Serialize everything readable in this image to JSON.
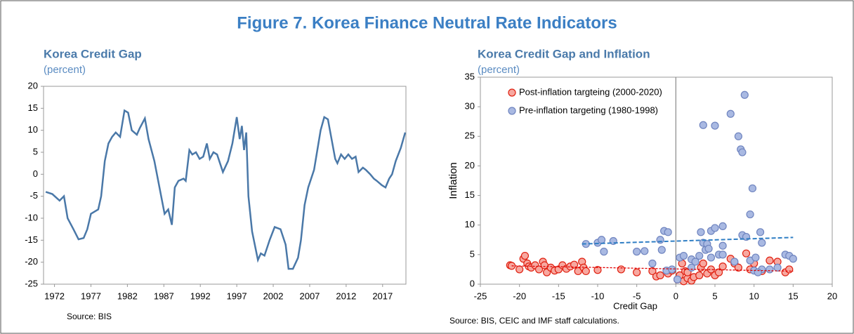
{
  "figure_title": "Figure 7. Korea Finance Neutral Rate Indicators",
  "chart_data": [
    {
      "type": "line",
      "title": "Korea Credit Gap",
      "subtitle": "(percent)",
      "source": "Source: BIS",
      "color": "#4a78a8",
      "x": [
        1970.8,
        1971.7,
        1972.7,
        1973.3,
        1973.8,
        1974.6,
        1975.3,
        1976.0,
        1976.5,
        1977.0,
        1978.0,
        1978.4,
        1978.9,
        1979.4,
        1979.9,
        1980.4,
        1981.0,
        1981.6,
        1982.1,
        1982.6,
        1983.3,
        1983.7,
        1984.4,
        1984.9,
        1985.7,
        1986.4,
        1987.1,
        1987.6,
        1988.1,
        1988.5,
        1989.0,
        1989.7,
        1990.0,
        1990.5,
        1990.9,
        1991.4,
        1991.9,
        1992.4,
        1992.9,
        1993.3,
        1993.8,
        1994.3,
        1995.1,
        1995.8,
        1996.4,
        1997.0,
        1997.4,
        1997.7,
        1998.0,
        1998.3,
        1998.6,
        1999.1,
        1999.9,
        2000.3,
        2000.8,
        2001.5,
        2002.2,
        2003.0,
        2003.7,
        2004.1,
        2004.7,
        2005.4,
        2005.8,
        2006.3,
        2006.8,
        2007.6,
        2008.0,
        2008.5,
        2009.0,
        2009.5,
        2010.0,
        2010.5,
        2010.8,
        2011.3,
        2011.8,
        2012.3,
        2012.8,
        2013.3,
        2013.7,
        2014.3,
        2014.7,
        2015.3,
        2015.8,
        2016.2,
        2016.9,
        2017.4,
        2017.9,
        2018.3,
        2018.8,
        2019.5,
        2020.1
      ],
      "values": [
        -4,
        -4.5,
        -6,
        -5,
        -10,
        -12.5,
        -14.8,
        -14.5,
        -12.5,
        -9,
        -8,
        -5,
        3,
        7,
        8.5,
        9.5,
        8.5,
        14.5,
        14,
        10,
        9,
        10.5,
        12.7,
        8,
        3,
        -3,
        -9,
        -8,
        -11.5,
        -3,
        -1.5,
        -1,
        -1.5,
        5.5,
        4.5,
        5,
        3.5,
        4,
        7,
        3.5,
        5,
        4.5,
        0.5,
        3,
        7,
        13,
        8,
        11,
        5.5,
        9.5,
        -5,
        -13,
        -19.5,
        -18,
        -18.5,
        -15,
        -12,
        -12.5,
        -16,
        -21.5,
        -21.5,
        -19,
        -15,
        -7,
        -3,
        1,
        5,
        10,
        13,
        12.5,
        8,
        3.5,
        2.5,
        4.5,
        3.5,
        4.5,
        3.5,
        4,
        0.5,
        1.5,
        1,
        0,
        -1,
        -1.5,
        -2.5,
        -3,
        -1,
        0,
        3,
        6,
        9.5
      ],
      "xlim": [
        1970.5,
        2020.2
      ],
      "xticks": [
        1972,
        1977,
        1982,
        1987,
        1992,
        1997,
        2002,
        2007,
        2012,
        2017
      ],
      "ylim": [
        -25,
        20
      ],
      "yticks": [
        -25,
        -20,
        -15,
        -10,
        -5,
        0,
        5,
        10,
        15,
        20
      ]
    },
    {
      "type": "scatter",
      "title": "Korea Credit Gap and Inflation",
      "subtitle": "(percent)",
      "source": "Source: BIS, CEIC and IMF staff calculations.",
      "xlabel": "Credit Gap",
      "ylabel": "Inflation",
      "legend": "upper left",
      "reference_x": 0,
      "xlim": [
        -25,
        20
      ],
      "xticks": [
        -25,
        -20,
        -15,
        -10,
        -5,
        0,
        5,
        10,
        15,
        20
      ],
      "ylim": [
        0,
        35
      ],
      "yticks": [
        0,
        5,
        10,
        15,
        20,
        25,
        30,
        35
      ],
      "series": [
        {
          "name": "Post-inflation targteing (2000-2020)",
          "color": "#f7a8a0",
          "edge": "#e02010",
          "x": [
            -21.2,
            -21,
            -20,
            -19.5,
            -19.3,
            -19,
            -18.8,
            -18.5,
            -18,
            -17.5,
            -17,
            -16.8,
            -16.5,
            -16,
            -15.5,
            -15,
            -14.5,
            -14,
            -13.5,
            -13,
            -12.5,
            -12,
            -11.8,
            -11.5,
            -10,
            -7,
            -5,
            -3,
            -2.5,
            -2,
            -1,
            -0.5,
            0.2,
            0.5,
            1,
            1.2,
            1.5,
            2,
            2.3,
            3,
            3.2,
            3.5,
            4,
            4.5,
            5,
            5.5,
            6,
            7,
            7.5,
            8,
            9,
            9.5,
            10,
            11,
            12,
            13,
            14,
            14.5,
            0.8,
            1.5
          ],
          "values": [
            3.2,
            3.1,
            2.5,
            4.3,
            4.8,
            3.5,
            3,
            2.8,
            3.2,
            2.5,
            3.8,
            3.2,
            2,
            2.8,
            2.3,
            2.5,
            3.2,
            2.6,
            3,
            3.3,
            2.2,
            3.8,
            2.8,
            2.2,
            2.4,
            2.5,
            2,
            2.2,
            1.3,
            1.5,
            1.8,
            2.3,
            0.8,
            1.5,
            0.5,
            2.2,
            1,
            0.6,
            1.2,
            1.5,
            2.8,
            3.5,
            1.8,
            2.5,
            1.5,
            2,
            3,
            4.3,
            3.5,
            2.8,
            5.2,
            2.5,
            3.5,
            2.2,
            4,
            3.8,
            2,
            2.5,
            3.5,
            2
          ],
          "trend_color": "#e00000",
          "trend": {
            "x": [
              -21,
              15
            ],
            "y": [
              3.1,
              2.2
            ]
          }
        },
        {
          "name": "Pre-inflation targeting (1980-1998)",
          "color": "#a9b9e2",
          "edge": "#6f84bf",
          "x": [
            -11.5,
            -10,
            -9.5,
            -9.2,
            -8,
            -5,
            -4,
            -3,
            -2,
            -1.8,
            -1.5,
            -1,
            -1.2,
            -0.5,
            0.2,
            0.5,
            1,
            2,
            2.5,
            3,
            3.2,
            3.5,
            3.5,
            3.8,
            4,
            4.2,
            4.5,
            4.5,
            5,
            5,
            5.5,
            6,
            6,
            7,
            7.5,
            8,
            8.3,
            8.5,
            8.5,
            8.8,
            9,
            9.5,
            9.5,
            9.8,
            10,
            10.2,
            10.8,
            11,
            11,
            12,
            13,
            14,
            14.5,
            15,
            2,
            6,
            10.5
          ],
          "values": [
            6.8,
            7,
            7.5,
            5.5,
            7.3,
            5.5,
            5.6,
            3.5,
            7.5,
            5.8,
            9,
            8.8,
            2.3,
            2.5,
            0.8,
            4.5,
            4.8,
            4.2,
            3.8,
            4.8,
            8.8,
            7,
            26.9,
            5.8,
            6.8,
            6,
            9,
            4.5,
            9.5,
            26.8,
            5,
            9.8,
            6.5,
            28.8,
            3.8,
            25,
            22.8,
            22.3,
            8.3,
            32,
            8,
            4,
            11.8,
            16.2,
            2.3,
            4.5,
            8.8,
            7,
            2.5,
            2.5,
            2.8,
            5,
            4.8,
            4.3,
            2.8,
            5,
            2
          ],
          "trend_color": "#2f7ec4",
          "trend": {
            "x": [
              -12,
              15
            ],
            "y": [
              6.8,
              7.9
            ]
          }
        }
      ]
    }
  ]
}
